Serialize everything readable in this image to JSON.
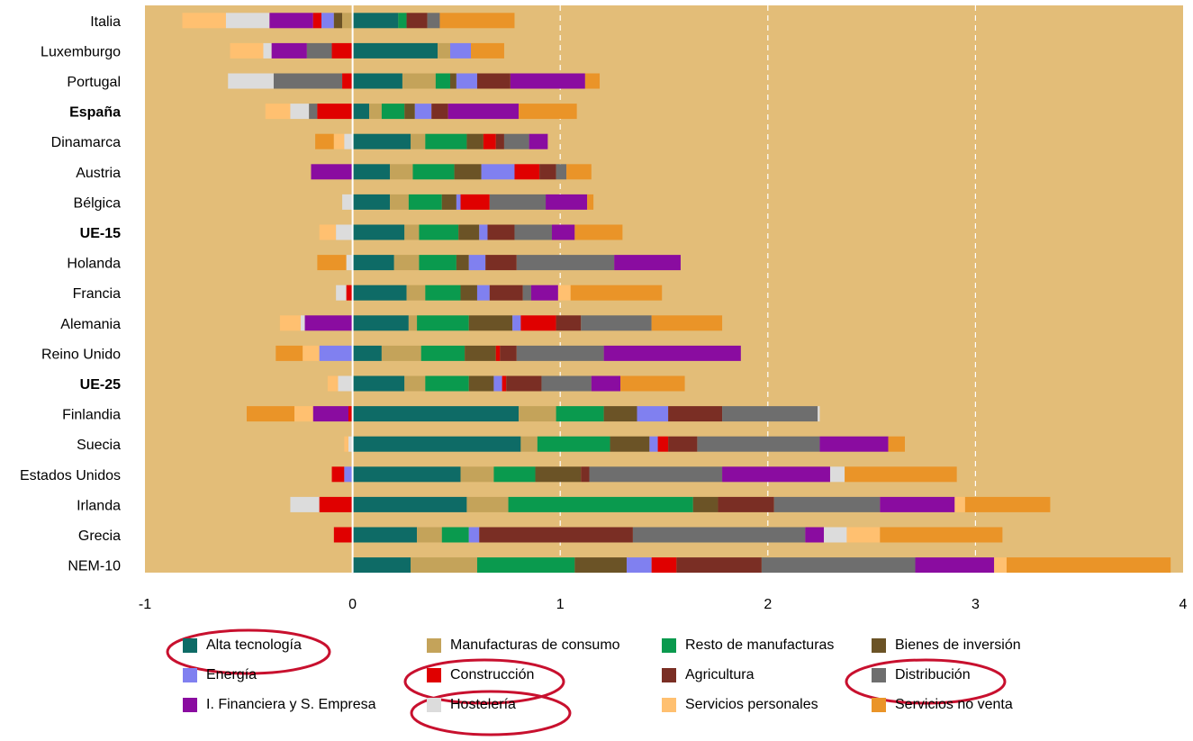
{
  "chart_data": {
    "type": "bar",
    "orientation": "horizontal",
    "stacked": true,
    "xlim": [
      -1,
      4
    ],
    "x_ticks": [
      "-1",
      "0",
      "1",
      "2",
      "3",
      "4"
    ],
    "plot_background": "#E3BD78",
    "categories": [
      "Italia",
      "Luxemburgo",
      "Portugal",
      "España",
      "Dinamarca",
      "Austria",
      "Bélgica",
      "UE-15",
      "Holanda",
      "Francia",
      "Alemania",
      "Reino Unido",
      "UE-25",
      "Finlandia",
      "Suecia",
      "Estados Unidos",
      "Irlanda",
      "Grecia",
      "NEM-10"
    ],
    "bold_categories": [
      "España",
      "UE-15",
      "UE-25"
    ],
    "series": [
      {
        "name": "Alta tecnología",
        "color": "#0E6B66",
        "values": [
          0.22,
          0.41,
          0.24,
          0.08,
          0.28,
          0.18,
          0.18,
          0.25,
          0.2,
          0.26,
          0.27,
          0.14,
          0.25,
          0.8,
          0.81,
          0.52,
          0.55,
          0.31,
          0.28
        ]
      },
      {
        "name": "Manufacturas de consumo",
        "color": "#C4A35A",
        "values": [
          0,
          0.06,
          0.16,
          0.06,
          0.07,
          0.11,
          0.09,
          0.07,
          0.12,
          0.09,
          0.04,
          0.19,
          0.1,
          0.18,
          0.08,
          0.16,
          0.2,
          0.12,
          0.32
        ]
      },
      {
        "name": "Resto de manufacturas",
        "color": "#0A9A4E",
        "values": [
          0.04,
          0,
          0.07,
          0.11,
          0.2,
          0.2,
          0.16,
          0.19,
          0.18,
          0.17,
          0.25,
          0.21,
          0.21,
          0.23,
          0.35,
          0.2,
          0.89,
          0.13,
          0.47
        ]
      },
      {
        "name": "Bienes de inversión",
        "color": "#6B5326",
        "values": [
          0,
          0,
          0.03,
          0.05,
          0.08,
          0.13,
          0.07,
          0.1,
          0.06,
          0.08,
          0.21,
          0.15,
          0.12,
          0.16,
          0.19,
          0.22,
          0.12,
          0,
          0.25
        ]
      },
      {
        "name": "Energía",
        "color": "#8080F0",
        "values": [
          0,
          0.1,
          0.1,
          0.08,
          0,
          0.16,
          0.02,
          0.04,
          0.08,
          0.06,
          0.04,
          0,
          0.04,
          0.15,
          0.04,
          0,
          0,
          0.05,
          0.12
        ]
      },
      {
        "name": "Construcción",
        "color": "#E00000",
        "values": [
          0,
          0,
          0,
          0,
          0.06,
          0.12,
          0.14,
          0,
          0,
          0,
          0.17,
          0.02,
          0.02,
          0,
          0.05,
          0,
          0,
          0,
          0.12
        ]
      },
      {
        "name": "Agricultura",
        "color": "#7A2E24",
        "values": [
          0.1,
          0,
          0.16,
          0.08,
          0.04,
          0.08,
          0,
          0.13,
          0.15,
          0.16,
          0.12,
          0.08,
          0.17,
          0.26,
          0.14,
          0.04,
          0.27,
          0.74,
          0.41
        ]
      },
      {
        "name": "Distribución",
        "color": "#6E6E6E",
        "values": [
          0.06,
          0,
          0,
          0,
          0.12,
          0.05,
          0.27,
          0.18,
          0.47,
          0.04,
          0.34,
          0.42,
          0.24,
          0.46,
          0.59,
          0.64,
          0.51,
          0.83,
          0.74
        ]
      },
      {
        "name": "I. Financiera y S. Empresa",
        "color": "#8A0CA0",
        "values": [
          0,
          0,
          0.36,
          0.34,
          0.09,
          0,
          0.2,
          0.11,
          0.32,
          0.13,
          0,
          0.66,
          0.14,
          0,
          0.33,
          0.52,
          0.36,
          0.09,
          0.38
        ]
      },
      {
        "name": "Hostelería",
        "color": "#DCDCDC",
        "values": [
          0,
          0,
          0,
          0,
          0,
          0,
          0,
          0,
          0,
          0,
          0,
          0,
          0,
          0.01,
          0,
          0.07,
          0,
          0.11,
          0
        ]
      },
      {
        "name": "Servicios personales",
        "color": "#FFC070",
        "values": [
          0,
          0,
          0,
          0,
          0,
          0,
          0,
          0,
          0,
          0.06,
          0,
          0,
          0,
          0,
          0,
          0,
          0.05,
          0.16,
          0.06
        ]
      },
      {
        "name": "Servicios no venta",
        "color": "#EA9428",
        "values": [
          0.36,
          0.16,
          0.07,
          0.28,
          0,
          0.12,
          0.03,
          0.23,
          0,
          0.44,
          0.34,
          0,
          0.31,
          0,
          0.08,
          0.54,
          0.41,
          0.59,
          0.79
        ]
      }
    ],
    "negative": [
      [
        {
          "s": "Servicios personales",
          "v": 0.21
        },
        {
          "s": "Hostelería",
          "v": 0.21
        },
        {
          "s": "I. Financiera y S. Empresa",
          "v": 0.21
        },
        {
          "s": "Construcción",
          "v": 0.04
        },
        {
          "s": "Energía",
          "v": 0.06
        },
        {
          "s": "Bienes de inversión",
          "v": 0.04
        },
        {
          "s": "Manufacturas de consumo",
          "v": 0.05
        }
      ],
      [
        {
          "s": "Servicios personales",
          "v": 0.16
        },
        {
          "s": "Hostelería",
          "v": 0.04
        },
        {
          "s": "I. Financiera y S. Empresa",
          "v": 0.17
        },
        {
          "s": "Distribución",
          "v": 0.12
        },
        {
          "s": "Construcción",
          "v": 0.1
        }
      ],
      [
        {
          "s": "Hostelería",
          "v": 0.22
        },
        {
          "s": "Distribución",
          "v": 0.33
        },
        {
          "s": "Construcción",
          "v": 0.05
        }
      ],
      [
        {
          "s": "Servicios personales",
          "v": 0.12
        },
        {
          "s": "Hostelería",
          "v": 0.09
        },
        {
          "s": "Distribución",
          "v": 0.04
        },
        {
          "s": "Construcción",
          "v": 0.17
        }
      ],
      [
        {
          "s": "Servicios no venta",
          "v": 0.09
        },
        {
          "s": "Servicios personales",
          "v": 0.05
        },
        {
          "s": "Hostelería",
          "v": 0.04
        }
      ],
      [
        {
          "s": "I. Financiera y S. Empresa",
          "v": 0.2
        }
      ],
      [
        {
          "s": "Hostelería",
          "v": 0.05
        }
      ],
      [
        {
          "s": "Servicios personales",
          "v": 0.08
        },
        {
          "s": "Hostelería",
          "v": 0.08
        }
      ],
      [
        {
          "s": "Servicios no venta",
          "v": 0.14
        },
        {
          "s": "Hostelería",
          "v": 0.03
        }
      ],
      [
        {
          "s": "Hostelería",
          "v": 0.05
        },
        {
          "s": "Construcción",
          "v": 0.03
        }
      ],
      [
        {
          "s": "Servicios personales",
          "v": 0.1
        },
        {
          "s": "Hostelería",
          "v": 0.02
        },
        {
          "s": "I. Financiera y S. Empresa",
          "v": 0.23
        }
      ],
      [
        {
          "s": "Servicios no venta",
          "v": 0.13
        },
        {
          "s": "Servicios personales",
          "v": 0.08
        },
        {
          "s": "Energía",
          "v": 0.16
        }
      ],
      [
        {
          "s": "Servicios personales",
          "v": 0.05
        },
        {
          "s": "Hostelería",
          "v": 0.07
        }
      ],
      [
        {
          "s": "Servicios no venta",
          "v": 0.23
        },
        {
          "s": "Servicios personales",
          "v": 0.09
        },
        {
          "s": "I. Financiera y S. Empresa",
          "v": 0.17
        },
        {
          "s": "Construcción",
          "v": 0.02
        }
      ],
      [
        {
          "s": "Servicios personales",
          "v": 0.02
        },
        {
          "s": "Hostelería",
          "v": 0.02
        }
      ],
      [
        {
          "s": "Construcción",
          "v": 0.06
        },
        {
          "s": "Energía",
          "v": 0.04
        }
      ],
      [
        {
          "s": "Hostelería",
          "v": 0.14
        },
        {
          "s": "Construcción",
          "v": 0.16
        }
      ],
      [
        {
          "s": "Construcción",
          "v": 0.09
        }
      ],
      []
    ]
  }
}
